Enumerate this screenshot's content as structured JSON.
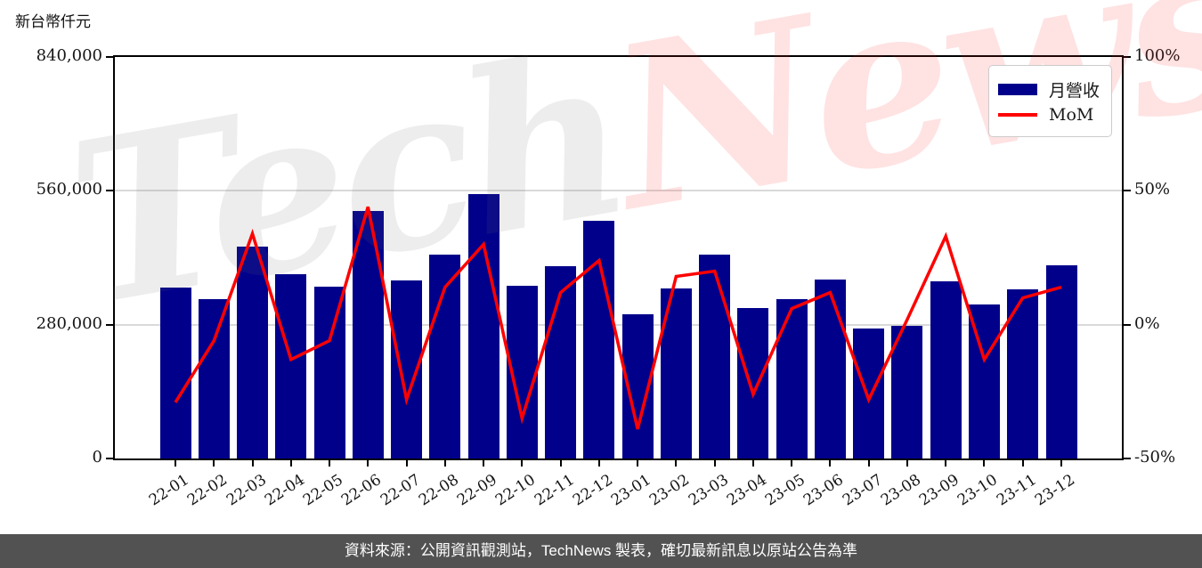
{
  "page": {
    "unit_title": "新台幣仟元",
    "footer_note": "資料來源：公開資訊觀測站，TechNews 製表，確切最新訊息以原站公告為準",
    "watermark": {
      "part1": "Tech",
      "part2": "News"
    }
  },
  "legend": {
    "bar_label": "月營收",
    "line_label": "MoM"
  },
  "colors": {
    "bar": "#00008b",
    "line": "#ff0000",
    "grid": "#d9d9d9",
    "axis": "#000000",
    "footer_bg": "#525252",
    "watermark_gray": "rgba(110,110,110,0.12)",
    "watermark_pink": "rgba(255,30,30,0.13)"
  },
  "chart_data": {
    "type": "bar",
    "title": "",
    "categories": [
      "22-01",
      "22-02",
      "22-03",
      "22-04",
      "22-05",
      "22-06",
      "22-07",
      "22-08",
      "22-09",
      "22-10",
      "22-11",
      "22-12",
      "23-01",
      "23-02",
      "23-03",
      "23-04",
      "23-05",
      "23-06",
      "23-07",
      "23-08",
      "23-09",
      "23-10",
      "23-11",
      "23-12"
    ],
    "series": [
      {
        "name": "月營收",
        "type": "bar",
        "axis": "left",
        "unit": "新台幣仟元",
        "values": [
          357000,
          333000,
          444000,
          385000,
          360000,
          518000,
          373000,
          426000,
          554000,
          361000,
          403000,
          497000,
          301000,
          355000,
          426000,
          315000,
          333000,
          374000,
          272000,
          277000,
          370000,
          323000,
          354000,
          405000
        ]
      },
      {
        "name": "MoM",
        "type": "line",
        "axis": "right",
        "unit": "%",
        "values": [
          -29,
          -6,
          34,
          -13,
          -6,
          44,
          -28,
          14,
          30,
          -35,
          12,
          24,
          -39,
          18,
          20,
          -26,
          6,
          12,
          -28,
          2,
          33,
          -13,
          10,
          14
        ]
      }
    ],
    "left_axis": {
      "label": "新台幣仟元",
      "min": 0,
      "max": 840000,
      "tick_values": [
        0,
        280000,
        560000,
        840000
      ],
      "tick_labels": [
        "0",
        "280,000",
        "560,000",
        "840,000"
      ]
    },
    "right_axis": {
      "label": "MoM %",
      "min": -50,
      "max": 100,
      "tick_values": [
        -50,
        0,
        50,
        100
      ],
      "tick_labels": [
        "-50%",
        "0%",
        "50%",
        "100%"
      ]
    },
    "gridline_values": [
      280000,
      560000
    ],
    "grid": "horizontal",
    "legend_position": "top-right"
  }
}
